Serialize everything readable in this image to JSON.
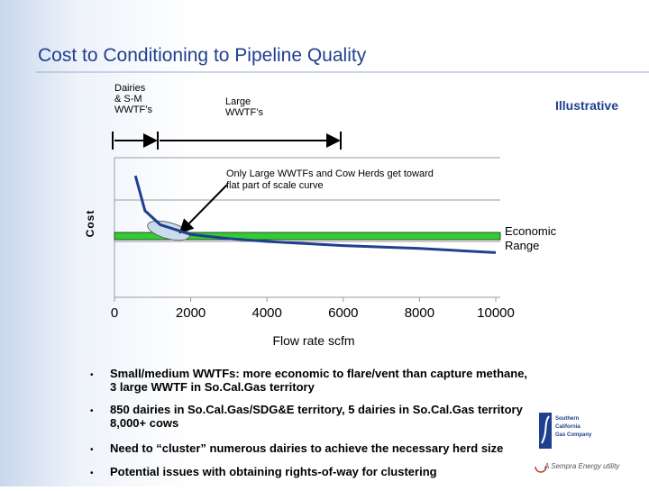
{
  "slide": {
    "title": "Cost to Conditioning to Pipeline Quality",
    "illustrative": "Illustrative",
    "bracket_labels": [
      [
        "Dairies",
        "& S-M",
        "WWTF’s"
      ],
      [
        "Large",
        "WWTF’s"
      ]
    ],
    "annotation": [
      "Only Large WWTFs and Cow Herds get toward",
      "flat part of scale curve"
    ],
    "range_label": [
      "Economic",
      "Range"
    ],
    "bullets": [
      [
        "Small/medium WWTFs: more economic to flare/vent than capture methane,",
        "3 large WWTF in So.Cal.Gas territory"
      ],
      [
        "850 dairies in So.Cal.Gas/SDG&E territory, 5 dairies in So.Cal.Gas territory",
        "8,000+ cows"
      ],
      [
        "Need to “cluster” numerous dairies to achieve the necessary herd size"
      ],
      [
        "Potential issues with obtaining rights-of-way for clustering"
      ]
    ],
    "logo": [
      "Southern",
      "California",
      "Gas Company"
    ],
    "tagline": "A Sempra Energy utility"
  },
  "chart_data": {
    "type": "line",
    "x_label": "Flow rate scfm",
    "y_label": "Cost",
    "x": [
      550,
      800,
      1200,
      2000,
      3000,
      4000,
      6000,
      8000,
      10000
    ],
    "series": [
      {
        "color": "#1f3f8f",
        "values": [
          0.87,
          0.62,
          0.52,
          0.45,
          0.42,
          0.4,
          0.37,
          0.35,
          0.32
        ]
      }
    ],
    "xlim": [
      0,
      10000
    ],
    "xticks": [
      0,
      2000,
      4000,
      6000,
      8000,
      10000
    ],
    "ylim": [
      0,
      1
    ]
  }
}
